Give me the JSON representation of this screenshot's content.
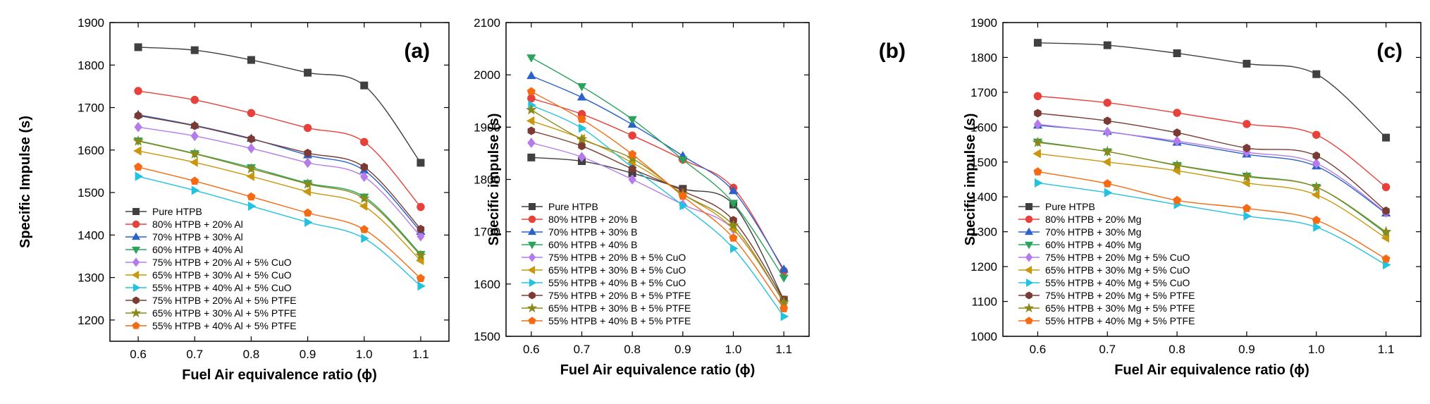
{
  "chart_data": [
    {
      "type": "line",
      "panel_label": "(a)",
      "xlabel": "Fuel Air equivalence ratio (ϕ)",
      "ylabel": "Specific Impulse (s)",
      "xlim": [
        0.55,
        1.15
      ],
      "ylim": [
        1150,
        1900
      ],
      "xticks": [
        0.6,
        0.7,
        0.8,
        0.9,
        1.0,
        1.1
      ],
      "yticks": [
        1200,
        1300,
        1400,
        1500,
        1600,
        1700,
        1800,
        1900
      ],
      "legend_position": "bottom-left",
      "x": [
        0.6,
        0.7,
        0.8,
        0.9,
        1.0,
        1.1
      ],
      "series": [
        {
          "name": "Pure HTPB",
          "color": "#404040",
          "marker": "square",
          "values": [
            1842,
            1835,
            1812,
            1782,
            1752,
            1570
          ]
        },
        {
          "name": "80% HTPB + 20% Al",
          "color": "#e8413b",
          "marker": "circle",
          "values": [
            1739,
            1718,
            1687,
            1652,
            1619,
            1466
          ]
        },
        {
          "name": "70% HTPB + 30% Al",
          "color": "#2a62c9",
          "marker": "triangle-up",
          "values": [
            1683,
            1658,
            1627,
            1588,
            1552,
            1408
          ]
        },
        {
          "name": "60% HTPB + 40% Al",
          "color": "#2aa35c",
          "marker": "triangle-down",
          "values": [
            1622,
            1592,
            1559,
            1522,
            1490,
            1355
          ]
        },
        {
          "name": "75% HTPB + 20% Al + 5% CuO",
          "color": "#b57bea",
          "marker": "diamond",
          "values": [
            1654,
            1633,
            1604,
            1570,
            1537,
            1397
          ]
        },
        {
          "name": "65% HTPB + 30% Al + 5% CuO",
          "color": "#c9970e",
          "marker": "triangle-left",
          "values": [
            1598,
            1571,
            1538,
            1502,
            1468,
            1340
          ]
        },
        {
          "name": "55% HTPB + 40% Al + 5% CuO",
          "color": "#23c3e0",
          "marker": "triangle-right",
          "values": [
            1538,
            1505,
            1468,
            1430,
            1392,
            1280
          ]
        },
        {
          "name": "75% HTPB + 20% Al + 5% PTFE",
          "color": "#7b3a33",
          "marker": "hexagon",
          "values": [
            1681,
            1657,
            1626,
            1593,
            1560,
            1414
          ]
        },
        {
          "name": "65% HTPB + 30% Al + 5% PTFE",
          "color": "#8a8a1a",
          "marker": "star",
          "values": [
            1621,
            1591,
            1556,
            1520,
            1486,
            1352
          ]
        },
        {
          "name": "55% HTPB + 40% Al + 5% PTFE",
          "color": "#f56a12",
          "marker": "pentagon",
          "values": [
            1560,
            1527,
            1490,
            1452,
            1413,
            1298
          ]
        }
      ]
    },
    {
      "type": "line",
      "panel_label": "(b)",
      "xlabel": "Fuel Air equivalence ratio (ϕ)",
      "ylabel": "Specific impulse (s)",
      "xlim": [
        0.55,
        1.15
      ],
      "ylim": [
        1500,
        2100
      ],
      "xticks": [
        0.6,
        0.7,
        0.8,
        0.9,
        1.0,
        1.1
      ],
      "yticks": [
        1500,
        1600,
        1700,
        1800,
        1900,
        2000,
        2100
      ],
      "legend_position": "bottom-left",
      "x": [
        0.6,
        0.7,
        0.8,
        0.9,
        1.0,
        1.1
      ],
      "series": [
        {
          "name": "Pure HTPB",
          "color": "#404040",
          "marker": "square",
          "values": [
            1842,
            1835,
            1812,
            1782,
            1752,
            1570
          ]
        },
        {
          "name": "80% HTPB + 20% B",
          "color": "#e8413b",
          "marker": "circle",
          "values": [
            1955,
            1925,
            1884,
            1838,
            1784,
            1625
          ]
        },
        {
          "name": "70% HTPB + 30% B",
          "color": "#2a62c9",
          "marker": "triangle-up",
          "values": [
            1998,
            1957,
            1905,
            1845,
            1778,
            1628
          ]
        },
        {
          "name": "60% HTPB + 40% B",
          "color": "#2aa35c",
          "marker": "triangle-down",
          "values": [
            2033,
            1978,
            1915,
            1838,
            1755,
            1612
          ]
        },
        {
          "name": "75% HTPB + 20% B + 5% CuO",
          "color": "#b57bea",
          "marker": "diamond",
          "values": [
            1870,
            1843,
            1800,
            1752,
            1705,
            1565
          ]
        },
        {
          "name": "65% HTPB + 30% B + 5% CuO",
          "color": "#c9970e",
          "marker": "triangle-left",
          "values": [
            1912,
            1878,
            1832,
            1772,
            1705,
            1568
          ]
        },
        {
          "name": "55% HTPB + 40% B + 5% CuO",
          "color": "#23c3e0",
          "marker": "triangle-right",
          "values": [
            1942,
            1898,
            1823,
            1750,
            1668,
            1538
          ]
        },
        {
          "name": "75% HTPB + 20% B + 5% PTFE",
          "color": "#7b3a33",
          "marker": "hexagon",
          "values": [
            1893,
            1864,
            1820,
            1778,
            1722,
            1570
          ]
        },
        {
          "name": "65% HTPB + 30% B + 5% PTFE",
          "color": "#8a8a1a",
          "marker": "star",
          "values": [
            1933,
            1877,
            1840,
            1772,
            1712,
            1565
          ]
        },
        {
          "name": "55% HTPB + 40% B + 5% PTFE",
          "color": "#f56a12",
          "marker": "pentagon",
          "values": [
            1968,
            1915,
            1848,
            1768,
            1688,
            1553
          ]
        }
      ]
    },
    {
      "type": "line",
      "panel_label": "(c)",
      "xlabel": "Fuel Air equivalence ratio (ϕ)",
      "ylabel": "Specific impulse (s)",
      "xlim": [
        0.55,
        1.15
      ],
      "ylim": [
        1000,
        1900
      ],
      "xticks": [
        0.6,
        0.7,
        0.8,
        0.9,
        1.0,
        1.1
      ],
      "yticks": [
        1000,
        1100,
        1200,
        1300,
        1400,
        1500,
        1600,
        1700,
        1800,
        1900
      ],
      "legend_position": "bottom-left",
      "x": [
        0.6,
        0.7,
        0.8,
        0.9,
        1.0,
        1.1
      ],
      "series": [
        {
          "name": "Pure HTPB",
          "color": "#404040",
          "marker": "square",
          "values": [
            1842,
            1835,
            1812,
            1782,
            1752,
            1570
          ]
        },
        {
          "name": "80% HTPB + 20% Mg",
          "color": "#e8413b",
          "marker": "circle",
          "values": [
            1689,
            1670,
            1641,
            1609,
            1578,
            1428
          ]
        },
        {
          "name": "70% HTPB + 30% Mg",
          "color": "#2a62c9",
          "marker": "triangle-up",
          "values": [
            1605,
            1587,
            1556,
            1522,
            1488,
            1353
          ]
        },
        {
          "name": "60% HTPB + 40% Mg",
          "color": "#2aa35c",
          "marker": "triangle-down",
          "values": [
            1558,
            1530,
            1491,
            1460,
            1428,
            1296
          ]
        },
        {
          "name": "75% HTPB + 20% Mg + 5% CuO",
          "color": "#b57bea",
          "marker": "diamond",
          "values": [
            1608,
            1586,
            1560,
            1528,
            1496,
            1355
          ]
        },
        {
          "name": "65% HTPB + 30% Mg + 5% CuO",
          "color": "#c9970e",
          "marker": "triangle-left",
          "values": [
            1524,
            1500,
            1475,
            1440,
            1406,
            1282
          ]
        },
        {
          "name": "55% HTPB + 40% Mg + 5% CuO",
          "color": "#23c3e0",
          "marker": "triangle-right",
          "values": [
            1440,
            1412,
            1378,
            1345,
            1313,
            1205
          ]
        },
        {
          "name": "75% HTPB + 20% Mg + 5% PTFE",
          "color": "#7b3a33",
          "marker": "hexagon",
          "values": [
            1640,
            1618,
            1584,
            1540,
            1518,
            1360
          ]
        },
        {
          "name": "65% HTPB + 30% Mg + 5% PTFE",
          "color": "#8a8a1a",
          "marker": "star",
          "values": [
            1556,
            1530,
            1490,
            1458,
            1428,
            1300
          ]
        },
        {
          "name": "55% HTPB + 40% Mg + 5% PTFE",
          "color": "#f56a12",
          "marker": "pentagon",
          "values": [
            1472,
            1438,
            1390,
            1367,
            1333,
            1222
          ]
        }
      ]
    }
  ]
}
